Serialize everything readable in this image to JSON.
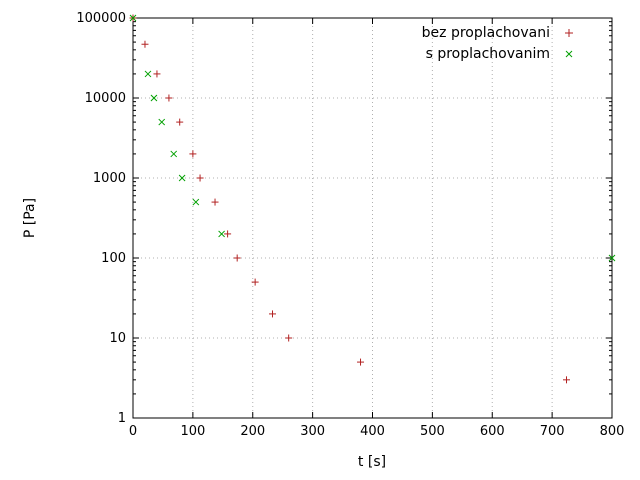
{
  "chart_data": {
    "type": "scatter",
    "title": "",
    "xlabel": "t [s]",
    "ylabel": "P [Pa]",
    "x_axis": {
      "min": 0,
      "max": 800,
      "ticks": [
        0,
        100,
        200,
        300,
        400,
        500,
        600,
        700,
        800
      ]
    },
    "y_axis": {
      "scale": "log",
      "min": 1,
      "max": 100000,
      "ticks": [
        1,
        10,
        100,
        1000,
        10000,
        100000
      ],
      "tick_labels": [
        "1",
        "10",
        "100",
        "1000",
        "10000",
        "100000"
      ]
    },
    "grid": "dotted",
    "grid_color": "#b0b0b0",
    "axis_color": "#000000",
    "text_color": "#000000",
    "legend_position": "top-right-inside",
    "series": [
      {
        "name": "bez proplachovani",
        "marker": "plus",
        "color": "#b22222",
        "points": [
          [
            0,
            100000
          ],
          [
            20,
            47000
          ],
          [
            40,
            20000
          ],
          [
            60,
            10000
          ],
          [
            78,
            5000
          ],
          [
            100,
            2000
          ],
          [
            112,
            1000
          ],
          [
            137,
            500
          ],
          [
            158,
            200
          ],
          [
            174,
            100
          ],
          [
            204,
            50
          ],
          [
            233,
            20
          ],
          [
            260,
            10
          ],
          [
            380,
            5
          ],
          [
            724,
            3
          ]
        ]
      },
      {
        "name": "s proplachovanim",
        "marker": "cross",
        "color": "#00a000",
        "points": [
          [
            0,
            100000
          ],
          [
            25,
            20000
          ],
          [
            35,
            10000
          ],
          [
            48,
            5000
          ],
          [
            68,
            2000
          ],
          [
            82,
            1000
          ],
          [
            105,
            500
          ],
          [
            148,
            200
          ],
          [
            800,
            100
          ]
        ]
      }
    ]
  }
}
